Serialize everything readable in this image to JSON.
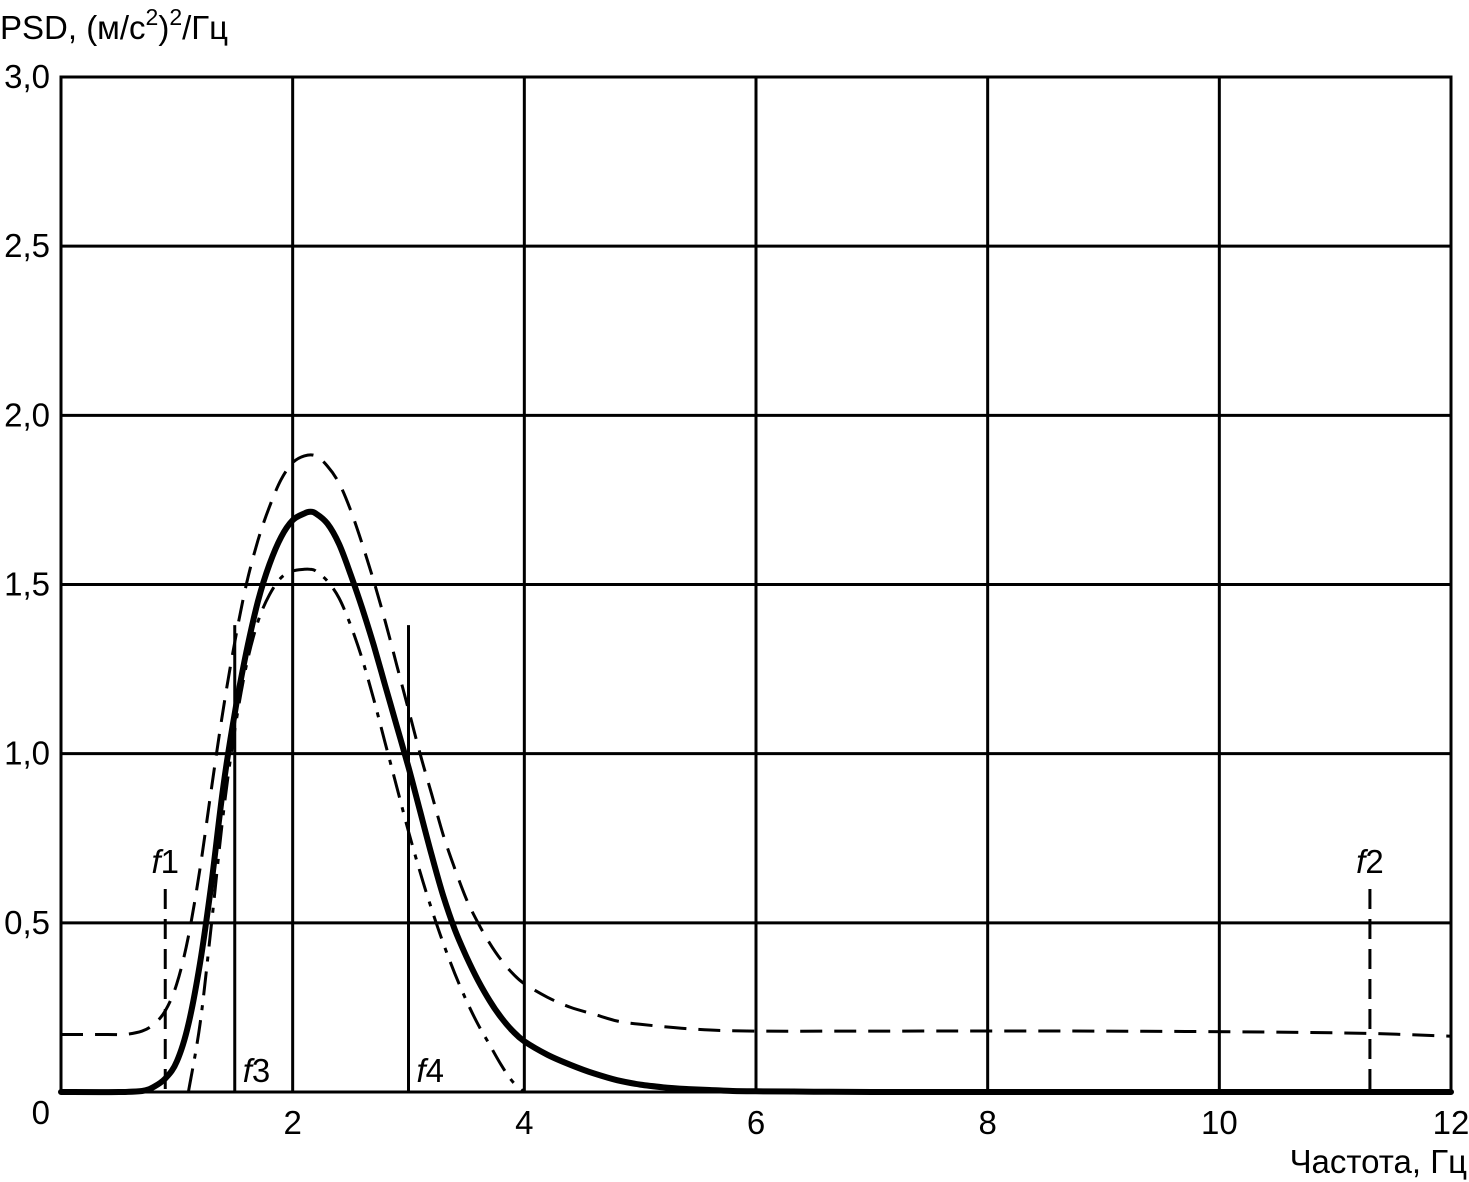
{
  "chart_data": {
    "type": "line",
    "ylabel": {
      "prefix": "PSD, (м/с",
      "exp1": "2",
      "mid": ")",
      "exp2": "2",
      "suffix": "/Гц"
    },
    "xlabel": "Частота, Гц",
    "xlim": [
      0,
      12
    ],
    "ylim": [
      0,
      3.0
    ],
    "xticks": [
      {
        "value": 2,
        "label": "2"
      },
      {
        "value": 4,
        "label": "4"
      },
      {
        "value": 6,
        "label": "6"
      },
      {
        "value": 8,
        "label": "8"
      },
      {
        "value": 10,
        "label": "10"
      },
      {
        "value": 12,
        "label": "12"
      }
    ],
    "yticks": [
      {
        "value": 0,
        "label": "0"
      },
      {
        "value": 0.5,
        "label": "0,5"
      },
      {
        "value": 1.0,
        "label": "1,0"
      },
      {
        "value": 1.5,
        "label": "1,5"
      },
      {
        "value": 2.0,
        "label": "2,0"
      },
      {
        "value": 2.5,
        "label": "2,5"
      },
      {
        "value": 3.0,
        "label": "3,0"
      }
    ],
    "grid": true,
    "series": [
      {
        "style": "solid-thick",
        "x": [
          0,
          0.5,
          0.7,
          0.8,
          0.9,
          1.0,
          1.1,
          1.2,
          1.3,
          1.4,
          1.5,
          1.6,
          1.7,
          1.8,
          1.9,
          2.0,
          2.1,
          2.15,
          2.2,
          2.3,
          2.4,
          2.5,
          2.6,
          2.7,
          2.8,
          2.9,
          3.0,
          3.1,
          3.2,
          3.3,
          3.4,
          3.5,
          3.6,
          3.7,
          3.8,
          3.9,
          4.0,
          4.2,
          4.4,
          4.6,
          4.8,
          5.0,
          5.2,
          5.4,
          5.6,
          5.8,
          6.0,
          6.5,
          7,
          8,
          10,
          12
        ],
        "y": [
          0,
          0,
          0.003,
          0.015,
          0.04,
          0.09,
          0.2,
          0.38,
          0.62,
          0.9,
          1.12,
          1.3,
          1.45,
          1.56,
          1.64,
          1.69,
          1.71,
          1.715,
          1.71,
          1.68,
          1.62,
          1.53,
          1.43,
          1.32,
          1.2,
          1.08,
          0.96,
          0.83,
          0.7,
          0.58,
          0.48,
          0.4,
          0.33,
          0.27,
          0.22,
          0.18,
          0.15,
          0.11,
          0.08,
          0.055,
          0.035,
          0.022,
          0.014,
          0.009,
          0.006,
          0.003,
          0.002,
          0.001,
          0,
          0,
          0,
          0
        ]
      },
      {
        "style": "dashed",
        "x": [
          0,
          0.4,
          0.55,
          0.7,
          0.8,
          0.9,
          1.0,
          1.1,
          1.2,
          1.3,
          1.4,
          1.5,
          1.6,
          1.7,
          1.8,
          1.9,
          2.0,
          2.1,
          2.2,
          2.3,
          2.4,
          2.5,
          2.6,
          2.7,
          2.8,
          2.9,
          3.0,
          3.1,
          3.2,
          3.3,
          3.4,
          3.5,
          3.6,
          3.7,
          3.8,
          3.9,
          4.0,
          4.2,
          4.4,
          4.6,
          4.8,
          5.0,
          5.5,
          6.0,
          7.0,
          9.0,
          11.0,
          12.0
        ],
        "y": [
          0.17,
          0.17,
          0.17,
          0.18,
          0.2,
          0.24,
          0.32,
          0.46,
          0.66,
          0.9,
          1.13,
          1.33,
          1.5,
          1.63,
          1.73,
          1.81,
          1.86,
          1.88,
          1.88,
          1.85,
          1.8,
          1.72,
          1.62,
          1.51,
          1.39,
          1.26,
          1.13,
          1.0,
          0.88,
          0.76,
          0.66,
          0.57,
          0.5,
          0.44,
          0.39,
          0.35,
          0.32,
          0.28,
          0.25,
          0.23,
          0.21,
          0.2,
          0.185,
          0.18,
          0.18,
          0.18,
          0.175,
          0.165
        ]
      },
      {
        "style": "dash-dot",
        "x": [
          1.1,
          1.2,
          1.3,
          1.4,
          1.5,
          1.6,
          1.7,
          1.8,
          1.9,
          2.0,
          2.1,
          2.15,
          2.2,
          2.3,
          2.4,
          2.5,
          2.6,
          2.7,
          2.8,
          2.9,
          3.0,
          3.1,
          3.2,
          3.3,
          3.4,
          3.5,
          3.6,
          3.7,
          3.8,
          3.9,
          4.0
        ],
        "y": [
          0,
          0.2,
          0.5,
          0.82,
          1.07,
          1.26,
          1.39,
          1.47,
          1.52,
          1.54,
          1.545,
          1.545,
          1.54,
          1.51,
          1.46,
          1.38,
          1.28,
          1.16,
          1.03,
          0.9,
          0.77,
          0.65,
          0.54,
          0.44,
          0.35,
          0.27,
          0.2,
          0.14,
          0.08,
          0.03,
          0
        ]
      }
    ],
    "markers": [
      {
        "label_italic": "f",
        "label_num": "1",
        "x": 0.9,
        "style": "dashed",
        "y_top": 0.6,
        "label_pos": "above"
      },
      {
        "label_italic": "f",
        "label_num": "2",
        "x": 11.3,
        "style": "dashed",
        "y_top": 0.6,
        "label_pos": "above"
      },
      {
        "label_italic": "f",
        "label_num": "3",
        "x": 1.5,
        "style": "solid",
        "y_top": 1.38,
        "label_pos": "bottom-right"
      },
      {
        "label_italic": "f",
        "label_num": "4",
        "x": 3.0,
        "style": "solid",
        "y_top": 1.38,
        "label_pos": "bottom-right"
      }
    ]
  }
}
